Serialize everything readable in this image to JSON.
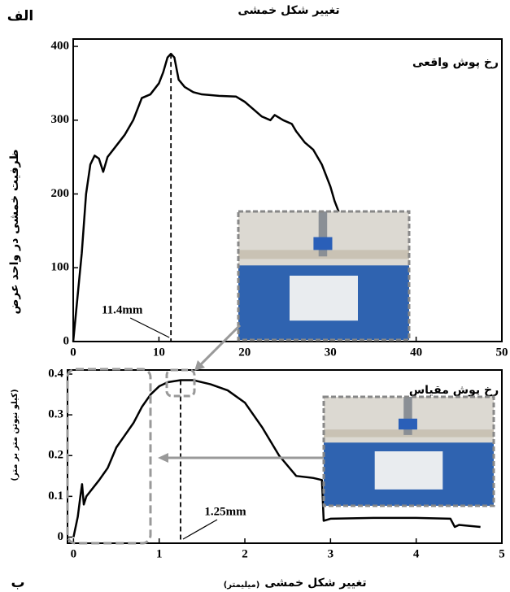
{
  "chart_data": [
    {
      "type": "line",
      "panel_label": "الف",
      "title": "تغییر شکل خمشی",
      "ylabel": "ظرفیت خمشی در واحد عرض",
      "ylabel_unit": "(کیلو نیوتن متر بر متر)",
      "x": [
        0,
        0.5,
        1,
        1.5,
        2,
        2.5,
        3,
        3.5,
        4,
        5,
        6,
        7,
        8,
        9,
        10,
        10.5,
        11,
        11.4,
        11.8,
        12.3,
        13,
        14,
        15,
        17,
        19,
        20,
        21,
        22,
        23,
        23.5,
        24.5,
        25.5,
        26,
        27,
        28,
        29,
        30,
        30.5,
        31
      ],
      "series": [
        {
          "name": "رخ پوش واقعی",
          "color": "#000000",
          "values": [
            0,
            60,
            120,
            200,
            240,
            252,
            248,
            230,
            250,
            265,
            280,
            300,
            330,
            335,
            350,
            365,
            385,
            390,
            385,
            355,
            345,
            338,
            335,
            333,
            332,
            325,
            315,
            305,
            300,
            307,
            300,
            295,
            285,
            270,
            260,
            240,
            210,
            190,
            175
          ]
        }
      ],
      "xlim": [
        0,
        50
      ],
      "ylim": [
        0,
        410
      ],
      "xticks": [
        0,
        10,
        20,
        30,
        40,
        50
      ],
      "yticks": [
        0,
        100,
        200,
        300,
        400
      ],
      "annotations": [
        {
          "text": "11.4mm",
          "x": 11.4,
          "y": 390
        }
      ]
    },
    {
      "type": "line",
      "panel_label": "ب",
      "xlabel": "تغییر شکل خمشی",
      "xlabel_unit": "(میلیمتر)",
      "x": [
        0,
        0.05,
        0.08,
        0.1,
        0.12,
        0.15,
        0.3,
        0.4,
        0.5,
        0.6,
        0.7,
        0.8,
        0.9,
        1.0,
        1.1,
        1.25,
        1.4,
        1.6,
        1.8,
        2.0,
        2.2,
        2.4,
        2.6,
        2.8,
        2.9,
        2.92,
        3.0,
        3.5,
        4.0,
        4.4,
        4.45,
        4.5,
        4.75
      ],
      "series": [
        {
          "name": "رخ پوش مقیاس",
          "color": "#000000",
          "values": [
            0,
            0.05,
            0.1,
            0.13,
            0.08,
            0.1,
            0.14,
            0.17,
            0.22,
            0.25,
            0.28,
            0.32,
            0.35,
            0.37,
            0.38,
            0.385,
            0.385,
            0.375,
            0.36,
            0.33,
            0.27,
            0.2,
            0.15,
            0.145,
            0.14,
            0.04,
            0.045,
            0.047,
            0.047,
            0.045,
            0.025,
            0.03,
            0.025
          ]
        }
      ],
      "xlim": [
        -0.07,
        5
      ],
      "ylim": [
        -0.015,
        0.41
      ],
      "xticks": [
        0,
        1,
        2,
        3,
        4,
        5
      ],
      "yticks": [
        0,
        0.1,
        0.2,
        0.3,
        0.4
      ],
      "annotations": [
        {
          "text": "1.25mm",
          "x": 1.25,
          "y": 0.385
        }
      ]
    }
  ]
}
